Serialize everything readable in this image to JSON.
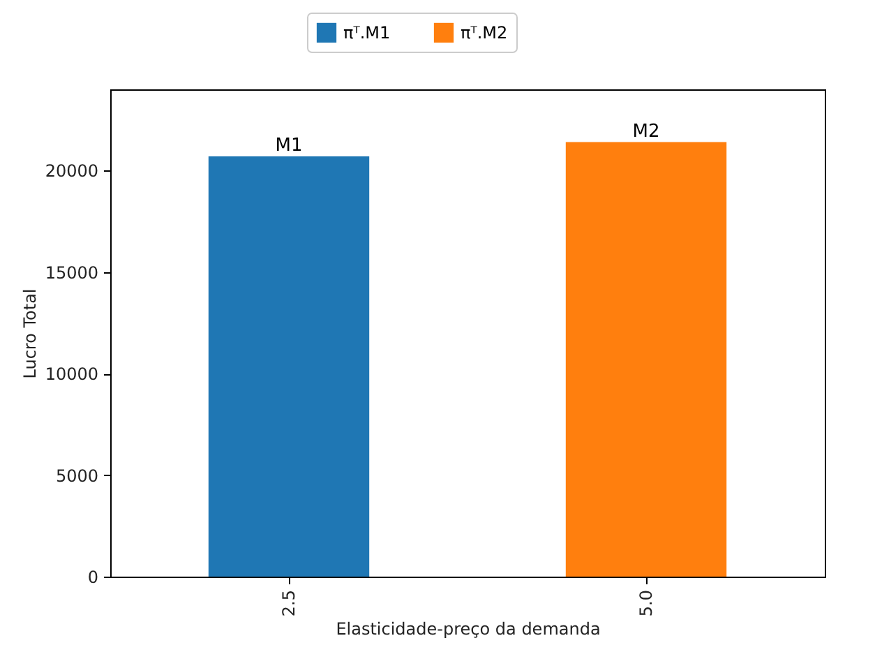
{
  "chart_data": {
    "type": "bar",
    "categories": [
      "2.5",
      "5.0"
    ],
    "series": [
      {
        "name": "πᵀ.M1",
        "color": "#1f77b4",
        "values": [
          20700,
          null
        ]
      },
      {
        "name": "πᵀ.M2",
        "color": "#ff7f0e",
        "values": [
          null,
          21400
        ]
      }
    ],
    "xlabel": "Elasticidade-preço da demanda",
    "ylabel": "Lucro Total",
    "ylim": [
      0,
      24000
    ],
    "yticks": [
      0,
      5000,
      10000,
      15000,
      20000
    ],
    "annotations": [
      {
        "text": "M1",
        "x": "2.5",
        "y": 20700
      },
      {
        "text": "M2",
        "x": "5.0",
        "y": 21400
      }
    ],
    "legend": "top",
    "grid": false
  }
}
